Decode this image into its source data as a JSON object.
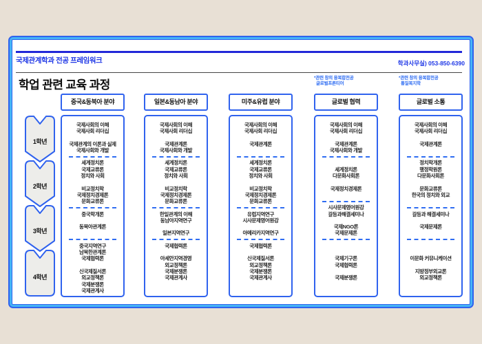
{
  "header": {
    "brand": "국제관계학과 전공 프레임워크",
    "phone": "학과사무실) 053-850-6390",
    "title": "학업 관련 교육 과정"
  },
  "annotations": [
    {
      "line1": "*관련 창의 융복합전공",
      "line2": "글로벌프론티어"
    },
    {
      "line1": "*관련 창의 융복합전공",
      "line2": "통일복지학"
    }
  ],
  "year_rail": [
    "1학년",
    "2학년",
    "3학년",
    "4학년"
  ],
  "columns": [
    {
      "header": "중국&동북아 분야",
      "rows": [
        "국제사회의 이해",
        "국제사회 리더십",
        "",
        "국제관계의 이론과 실제",
        "국제사회와 개발",
        "---",
        "세계정치론",
        "국제교류론",
        "정치와 사회",
        "",
        "비교정치학",
        "국제정치경제론",
        "문화교류론",
        "---",
        "중국학개론",
        "",
        "동북아관계론",
        "",
        "---",
        "중국지역연구",
        "남북한관계론",
        "국제협력론",
        "",
        "신국제질서론",
        "외교정책론",
        "국제분쟁론",
        "국제관계사"
      ]
    },
    {
      "header": "일본&동남아 분야",
      "rows": [
        "국제사회의 이해",
        "국제사회 리더십",
        "",
        "국제관계론",
        "국제사회와 개발",
        "---",
        "세계정치론",
        "국제교류론",
        "정치와 사회",
        "",
        "비교정치학",
        "국제정치경제론",
        "문화교류론",
        "---",
        "한일관계의 이해",
        "동남아지역연구",
        "",
        "일본지역연구",
        "---",
        "국제협력론",
        "",
        "아세안지역경영",
        "외교정책론",
        "국제분쟁론",
        "국제관계사"
      ]
    },
    {
      "header": "미주&유럽 분야",
      "rows": [
        "국제사회의 이해",
        "국제사회 리더십",
        "",
        "국제관계론",
        "",
        "---",
        "세계정치론",
        "국제교류론",
        "정치와 사회",
        "",
        "비교정치학",
        "국제정치경제론",
        "문화교류론",
        "---",
        "유럽지역연구",
        "시사문제영어원강",
        "",
        "아메리카지역연구",
        "---",
        "국제협력론",
        "",
        "신국제질서론",
        "외교정책론",
        "국제분쟁론",
        "국제관계사"
      ]
    },
    {
      "header": "글로벌 협력",
      "rows": [
        "국제사회의 이해",
        "국제사회 리더십",
        "",
        "국제관계론",
        "국제사회와 개발",
        "---",
        "",
        "세계정치론",
        "다문화사회론",
        "",
        "국제정치경제론",
        "",
        "---",
        "시사문제영어원강",
        "갈등과해결세미나",
        "",
        "국제NGO론",
        "국제문제론",
        "---",
        "",
        "",
        "국제기구론",
        "국제협력론",
        "",
        "국제분쟁론"
      ]
    },
    {
      "header": "글로벌 소통",
      "rows": [
        "국제사회의 이해",
        "국제사회 리더십",
        "",
        "국제관계론",
        "",
        "---",
        "정치학개론",
        "행정학원론",
        "다문화사회론",
        "",
        "문화교류론",
        "한국의 정치와 외교",
        "",
        "---",
        "갈등과 해결세미나",
        "",
        "국제문제론",
        "",
        "---",
        "",
        "",
        "이문화 커뮤니케이션",
        "",
        "지방정부외교론",
        "외교정책론"
      ]
    }
  ],
  "colors": {
    "accent_blue": "#2f62ee",
    "inner_light_blue": "#45b4f5",
    "navy_rule": "#2127d8",
    "heading_blue": "#1c35e6",
    "annotation_blue": "#2e6cf2",
    "page_background": "#e8e0d5",
    "panel_background": "#ffffff",
    "year_shape_fill": "#ededea"
  }
}
